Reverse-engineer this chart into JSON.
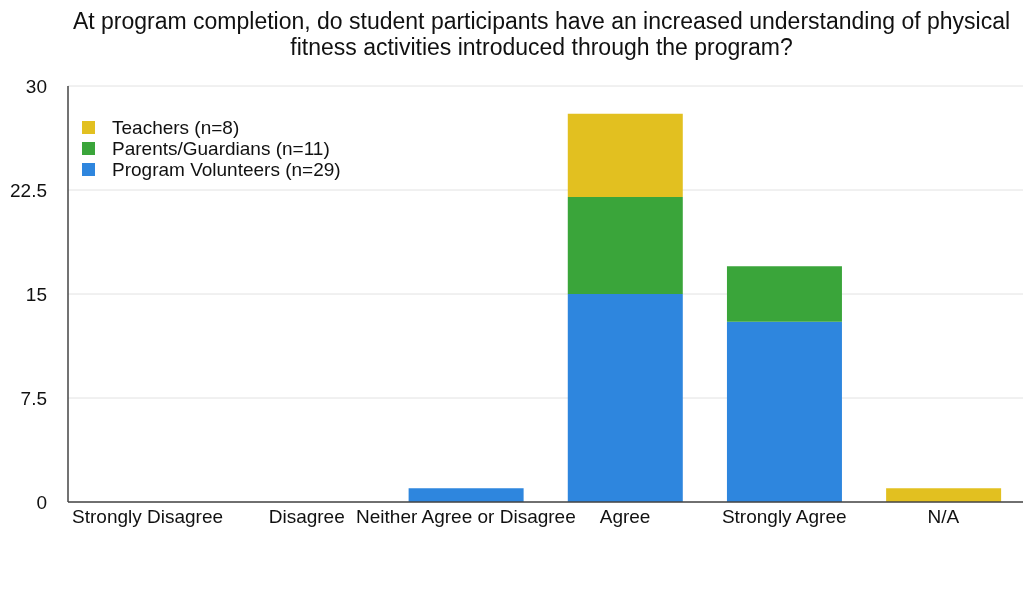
{
  "chart_data": {
    "type": "bar",
    "title": "At program completion, do student participants have an increased understanding of physical fitness activities introduced through the program?",
    "categories": [
      "Strongly Disagree",
      "Disagree",
      "Neither Agree or Disagree",
      "Agree",
      "Strongly Agree",
      "N/A"
    ],
    "series": [
      {
        "name": "Program Volunteers (n=29)",
        "color": "#2e86de",
        "values": [
          0,
          0,
          1,
          15,
          13,
          0
        ]
      },
      {
        "name": "Parents/Guardians (n=11)",
        "color": "#3aa53a",
        "values": [
          0,
          0,
          0,
          7,
          4,
          0
        ]
      },
      {
        "name": "Teachers (n=8)",
        "color": "#e2c020",
        "values": [
          0,
          0,
          0,
          6,
          0,
          1
        ]
      }
    ],
    "stacked": true,
    "ylim": [
      0,
      30
    ],
    "yticks": [
      0,
      7.5,
      15,
      22.5,
      30
    ],
    "grid": "y",
    "legend": "top left"
  }
}
